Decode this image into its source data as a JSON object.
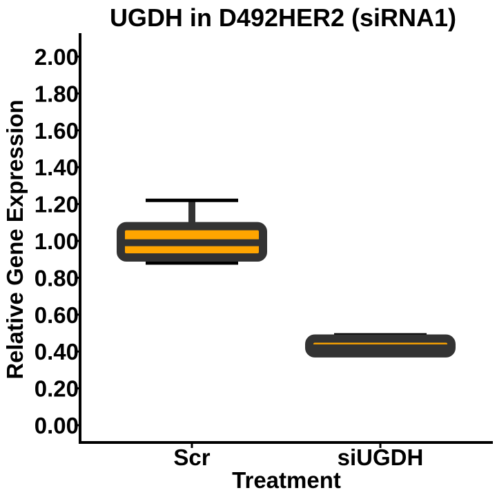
{
  "chart_data": {
    "type": "box",
    "title": "UGDH in D492HER2 (siRNA1)",
    "xlabel": "Treatment",
    "ylabel": "Relative Gene Expression",
    "ylim": [
      0,
      2.0
    ],
    "y_ticks": [
      0.0,
      0.2,
      0.4,
      0.6,
      0.8,
      1.0,
      1.2,
      1.4,
      1.6,
      1.8,
      2.0
    ],
    "y_tick_labels": [
      "0.00",
      "0.20",
      "0.40",
      "0.60",
      "0.80",
      "1.00",
      "1.20",
      "1.40",
      "1.60",
      "1.80",
      "2.00"
    ],
    "categories": [
      "Scr",
      "siUGDH"
    ],
    "boxes": [
      {
        "category": "Scr",
        "whisker_low": 0.88,
        "q1": 0.91,
        "median": 0.99,
        "q3": 1.08,
        "whisker_high": 1.22,
        "fill": "#FFA500"
      },
      {
        "category": "siUGDH",
        "whisker_low": 0.38,
        "q1": 0.39,
        "median": 0.42,
        "q3": 0.47,
        "whisker_high": 0.49,
        "fill": "#FFA500"
      }
    ],
    "grid": false,
    "legend": "none",
    "colors": {
      "box_outline": "#333333",
      "box_fill": "#FFA500",
      "axis": "#000000"
    }
  }
}
